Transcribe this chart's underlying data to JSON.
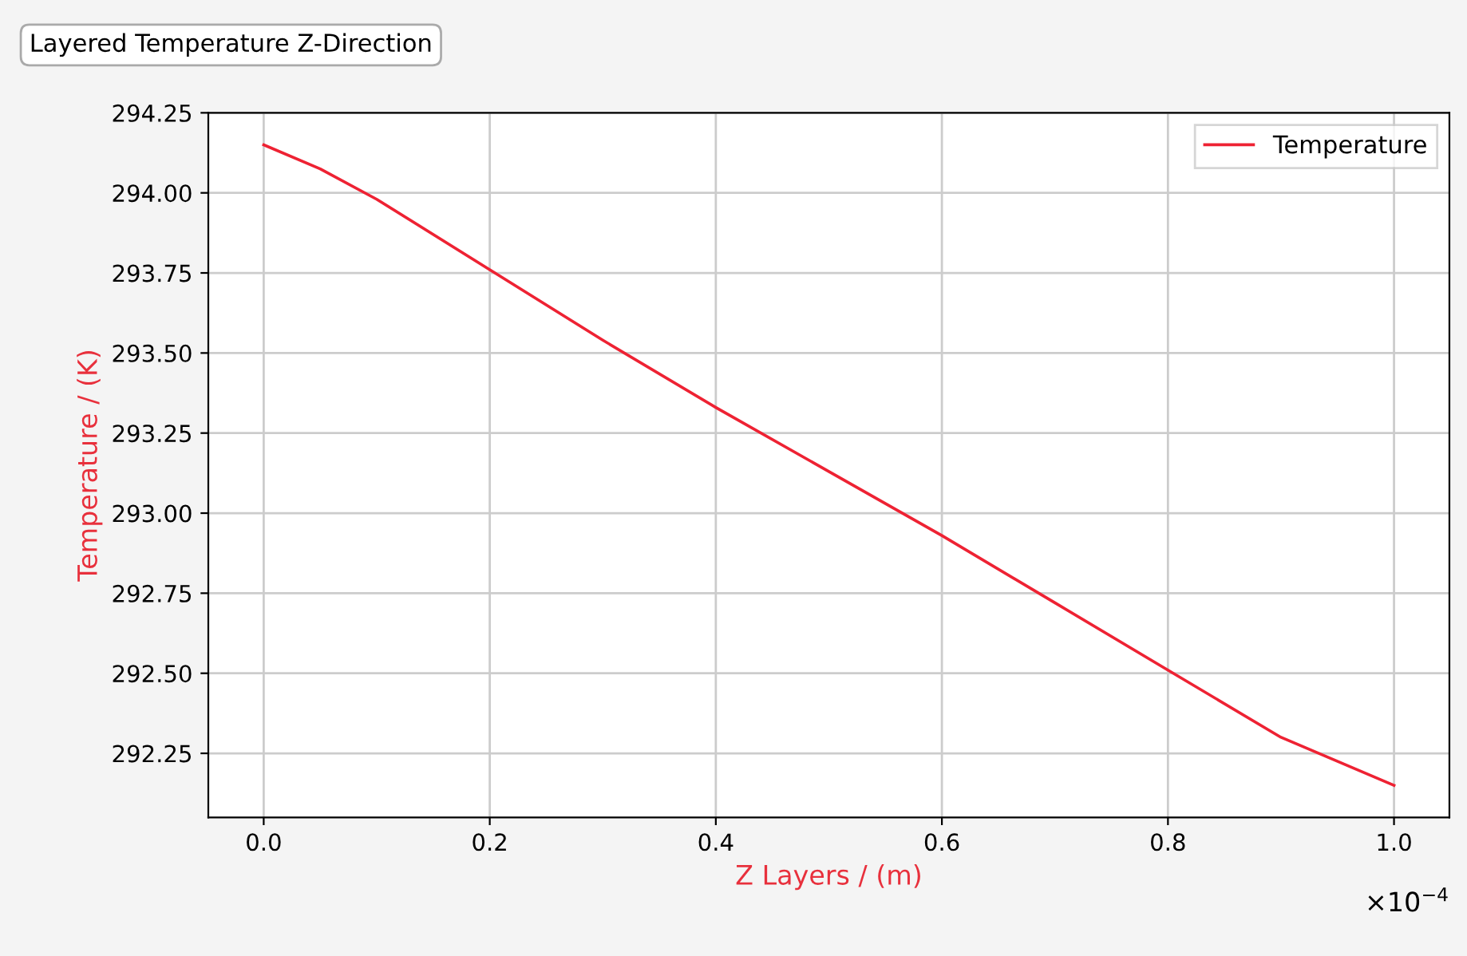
{
  "chart_data": {
    "type": "line",
    "title": "Layered Temperature Z-Direction",
    "xlabel": "Z Layers / (m)",
    "ylabel": "Temperature / (K)",
    "x": [
      0,
      0.05,
      0.1,
      0.2,
      0.3,
      0.4,
      0.5,
      0.6,
      0.7,
      0.8,
      0.9,
      1.0
    ],
    "series": [
      {
        "name": "Temperature",
        "color": "#ee2233",
        "values": [
          294.15,
          294.075,
          293.98,
          293.76,
          293.54,
          293.33,
          293.13,
          292.93,
          292.72,
          292.51,
          292.3,
          292.15
        ]
      }
    ],
    "xlim": [
      -0.049,
      1.049
    ],
    "ylim": [
      292.05,
      294.25
    ],
    "xticks": [
      {
        "value": 0,
        "label": "0.0"
      },
      0.2,
      0.4,
      0.6,
      0.8,
      {
        "value": 1,
        "label": "1.0"
      }
    ],
    "yticks": [
      {
        "value": 292.25,
        "label": "292.25"
      },
      {
        "value": 292.5,
        "label": "292.50"
      },
      {
        "value": 292.75,
        "label": "292.75"
      },
      {
        "value": 293,
        "label": "293.00"
      },
      {
        "value": 293.25,
        "label": "293.25"
      },
      {
        "value": 293.5,
        "label": "293.50"
      },
      {
        "value": 293.75,
        "label": "293.75"
      },
      {
        "value": 294,
        "label": "294.00"
      },
      {
        "value": 294.25,
        "label": "294.25"
      }
    ],
    "annotations": [
      "×10$^{−4}$"
    ],
    "grid": true,
    "legend": "top right",
    "marker": "none",
    "line_style": "solid"
  }
}
